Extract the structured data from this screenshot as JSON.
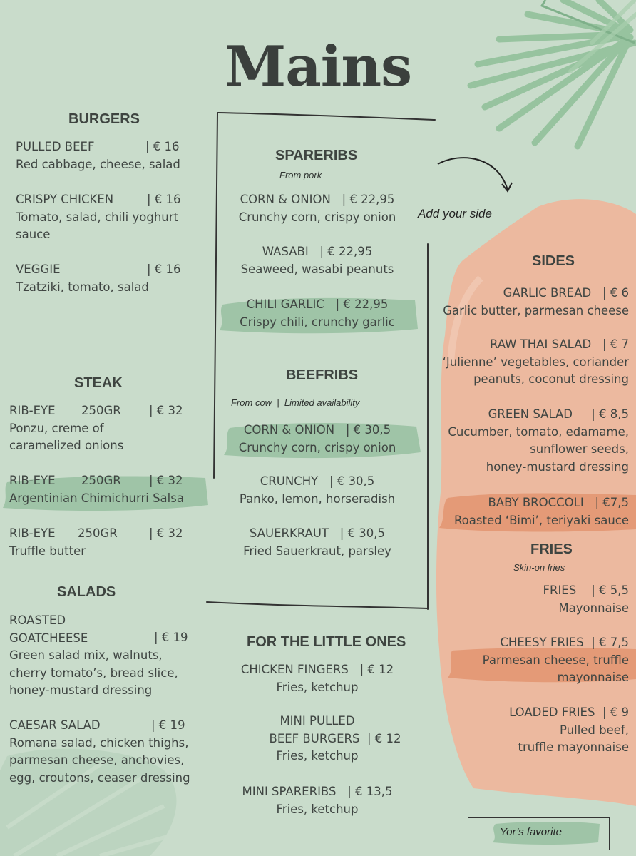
{
  "title": "Mains",
  "burgers": {
    "heading": "BURGERS",
    "items": [
      {
        "name": "PULLED BEEF",
        "price": "| € 16",
        "desc": "Red cabbage, cheese, salad"
      },
      {
        "name": "CRISPY CHICKEN",
        "price": "| € 16",
        "desc1": "Tomato, salad, chili yoghurt",
        "desc2": "sauce"
      },
      {
        "name": "VEGGIE",
        "price": "| € 16",
        "desc": "Tzatziki, tomato, salad"
      }
    ]
  },
  "steak": {
    "heading": "STEAK",
    "items": [
      {
        "name": "RIB-EYE",
        "weight": "250GR",
        "price": "| € 32",
        "desc1": "Ponzu, creme of",
        "desc2": "caramelized onions"
      },
      {
        "name": "RIB-EYE",
        "weight": "250GR",
        "price": "| € 32",
        "desc": "Argentinian Chimichurri Salsa"
      },
      {
        "name": "RIB-EYE",
        "weight": "250GR",
        "price": "| € 32",
        "desc": "Truffle butter"
      }
    ]
  },
  "salads": {
    "heading": "SALADS",
    "items": [
      {
        "name1": "ROASTED",
        "name2": "GOATCHEESE",
        "price": "| € 19",
        "desc1": "Green salad mix, walnuts,",
        "desc2": "cherry tomato’s, bread slice,",
        "desc3": "honey-mustard dressing"
      },
      {
        "name": "CAESAR SALAD",
        "price": "| € 19",
        "desc1": "Romana salad, chicken thighs,",
        "desc2": "parmesan cheese, anchovies,",
        "desc3": "egg, croutons, ceaser dressing"
      }
    ]
  },
  "spareribs": {
    "heading": "SPARERIBS",
    "note": "From pork",
    "items": [
      {
        "name": "CORN & ONION",
        "price": "| € 22,95",
        "desc": "Crunchy corn, crispy onion"
      },
      {
        "name": "WASABI",
        "price": "| € 22,95",
        "desc": "Seaweed, wasabi peanuts"
      },
      {
        "name": "CHILI GARLIC",
        "price": "| € 22,95",
        "desc": "Crispy chili, crunchy garlic"
      }
    ]
  },
  "beefribs": {
    "heading": "BEEFRIBS",
    "note": "From cow  |  Limited availability",
    "items": [
      {
        "name": "CORN & ONION",
        "price": "| € 30,5",
        "desc": "Crunchy corn, crispy onion"
      },
      {
        "name": "CRUNCHY",
        "price": "| € 30,5",
        "desc": "Panko, lemon, horseradish"
      },
      {
        "name": "SAUERKRAUT",
        "price": "| € 30,5",
        "desc": "Fried Sauerkraut, parsley"
      }
    ]
  },
  "little_ones": {
    "heading": "FOR THE LITTLE ONES",
    "items": [
      {
        "name": "CHICKEN FINGERS",
        "price": "| € 12",
        "desc": "Fries, ketchup"
      },
      {
        "name1": "MINI PULLED",
        "name2": "BEEF BURGERS",
        "price": "| € 12",
        "desc": "Fries, ketchup"
      },
      {
        "name": "MINI SPARERIBS",
        "price": "| € 13,5",
        "desc": "Fries, ketchup"
      }
    ]
  },
  "side_callout": "Add your side",
  "sides": {
    "heading": "SIDES",
    "items": [
      {
        "name": "GARLIC BREAD",
        "price": "| € 6",
        "desc": "Garlic butter, parmesan cheese"
      },
      {
        "name": "RAW THAI SALAD",
        "price": "| € 7",
        "desc1": "‘Julienne’ vegetables, coriander",
        "desc2": "peanuts, coconut dressing"
      },
      {
        "name": "GREEN SALAD",
        "price": "| € 8,5",
        "desc1": "Cucumber, tomato, edamame,",
        "desc2": "sunflower seeds,",
        "desc3": "honey-mustard dressing"
      },
      {
        "name": "BABY BROCCOLI",
        "price": "| €7,5",
        "desc": "Roasted ‘Bimi’, teriyaki sauce"
      }
    ]
  },
  "fries": {
    "heading": "FRIES",
    "note": "Skin-on fries",
    "items": [
      {
        "name": "FRIES",
        "price": "| € 5,5",
        "desc": "Mayonnaise"
      },
      {
        "name": "CHEESY FRIES",
        "price": "| € 7,5",
        "desc1": "Parmesan cheese, truffle",
        "desc2": "mayonnaise"
      },
      {
        "name": "LOADED FRIES",
        "price": "| € 9",
        "desc1": "Pulled beef,",
        "desc2": "truffle mayonnaise"
      }
    ]
  },
  "legend": "Yor’s favorite",
  "colors": {
    "background": "#c9dccb",
    "highlight_green": "#9fc4a7",
    "sides_peach": "#ecb99f",
    "highlight_orange": "#e49a77",
    "text": "#3f4542"
  },
  "icons": [
    "palm-leaf-icon",
    "monstera-leaf-icon",
    "curved-arrow-icon"
  ]
}
